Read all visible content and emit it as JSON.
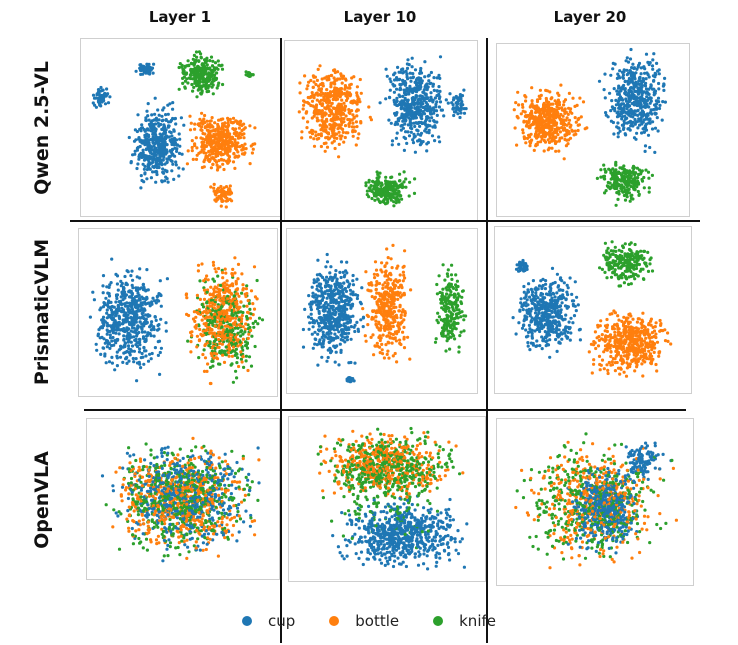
{
  "chart_data": {
    "type": "scatter",
    "columns": [
      "Layer 1",
      "Layer 10",
      "Layer 20"
    ],
    "rows": [
      "Qwen 2.5-VL",
      "PrismaticVLM",
      "OpenVLA"
    ],
    "legend": {
      "placement": "bottom",
      "entries": [
        {
          "label": "cup",
          "color": "#1f77b4"
        },
        {
          "label": "bottle",
          "color": "#ff7f0e"
        },
        {
          "label": "knife",
          "color": "#2ca02c"
        }
      ]
    },
    "axes_visible": false,
    "grid": false,
    "panels": [
      {
        "row": "Qwen 2.5-VL",
        "column": "Layer 1",
        "separation": "separated clusters"
      },
      {
        "row": "Qwen 2.5-VL",
        "column": "Layer 10",
        "separation": "separated clusters"
      },
      {
        "row": "Qwen 2.5-VL",
        "column": "Layer 20",
        "separation": "separated clusters"
      },
      {
        "row": "PrismaticVLM",
        "column": "Layer 1",
        "separation": "cup separated; bottle and knife mixed"
      },
      {
        "row": "PrismaticVLM",
        "column": "Layer 10",
        "separation": "separated clusters"
      },
      {
        "row": "PrismaticVLM",
        "column": "Layer 20",
        "separation": "separated clusters"
      },
      {
        "row": "OpenVLA",
        "column": "Layer 1",
        "separation": "all mixed"
      },
      {
        "row": "OpenVLA",
        "column": "Layer 10",
        "separation": "cup partly separated; bottle and knife mixed"
      },
      {
        "row": "OpenVLA",
        "column": "Layer 20",
        "separation": "cup partly separated; bottle and knife mixed"
      }
    ]
  }
}
